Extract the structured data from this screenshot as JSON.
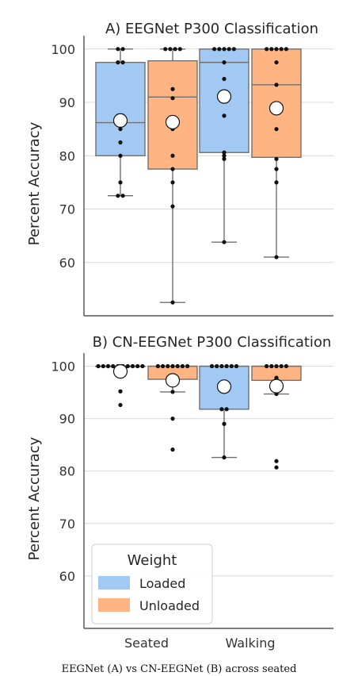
{
  "chart_data": [
    {
      "type": "box",
      "title": "A) EEGNet P300 Classification",
      "ylabel": "Percent Accuracy",
      "ylim": [
        50,
        102.5
      ],
      "yticks": [
        60,
        70,
        80,
        90,
        100
      ],
      "grid": "horizontal",
      "categories": [
        "Seated",
        "Walking"
      ],
      "series": [
        {
          "name": "Loaded",
          "color": "#a1c9f4",
          "boxes": [
            {
              "min": 72.5,
              "q1": 80.0,
              "median": 86.2,
              "q3": 97.5,
              "max": 100.0,
              "mean": 86.6,
              "points": [
                100,
                100,
                97.5,
                97.5,
                87.5,
                87.5,
                86.2,
                85.0,
                82.5,
                80.0,
                75.0,
                72.5,
                72.5
              ]
            },
            {
              "min": 63.8,
              "q1": 80.6,
              "median": 97.5,
              "q3": 100.0,
              "max": 100.0,
              "mean": 91.1,
              "points": [
                100,
                100,
                100,
                100,
                100,
                97.5,
                94.4,
                87.5,
                80.6,
                80.0,
                79.4,
                63.8
              ]
            }
          ]
        },
        {
          "name": "Unloaded",
          "color": "#ffb482",
          "boxes": [
            {
              "min": 52.5,
              "q1": 77.5,
              "median": 91.0,
              "q3": 97.8,
              "max": 100.0,
              "mean": 86.3,
              "points": [
                100,
                100,
                100,
                100,
                92.5,
                90.8,
                85.0,
                80.0,
                77.5,
                75.0,
                70.5,
                52.5
              ]
            },
            {
              "min": 61.0,
              "q1": 79.7,
              "median": 93.3,
              "q3": 100.0,
              "max": 100.0,
              "mean": 88.9,
              "points": [
                100,
                100,
                100,
                100,
                100,
                97.5,
                93.3,
                85.0,
                79.4,
                77.5,
                75.0,
                61.0
              ]
            }
          ]
        }
      ]
    },
    {
      "type": "box",
      "title": "B) CN-EEGNet P300 Classification",
      "ylabel": "Percent Accuracy",
      "ylim": [
        50,
        102.5
      ],
      "yticks": [
        60,
        70,
        80,
        90,
        100
      ],
      "grid": "horizontal",
      "categories": [
        "Seated",
        "Walking"
      ],
      "legend": {
        "title": "Weight",
        "entries": [
          "Loaded",
          "Unloaded"
        ],
        "location": "lower-left"
      },
      "series": [
        {
          "name": "Loaded",
          "color": "#a1c9f4",
          "boxes": [
            {
              "min": 100.0,
              "q1": 100.0,
              "median": 100.0,
              "q3": 100.0,
              "max": 100.0,
              "mean": 99.0,
              "points": [
                100,
                100,
                100,
                100,
                100,
                100,
                100,
                100,
                100,
                100,
                95.2,
                92.6
              ]
            },
            {
              "min": 82.6,
              "q1": 91.8,
              "median": 100.0,
              "q3": 100.0,
              "max": 100.0,
              "mean": 96.1,
              "points": [
                100,
                100,
                100,
                100,
                100,
                100,
                95.7,
                91.8,
                91.8,
                89.0,
                82.6
              ]
            }
          ]
        },
        {
          "name": "Unloaded",
          "color": "#ffb482",
          "boxes": [
            {
              "min": 95.1,
              "q1": 97.5,
              "median": 100.0,
              "q3": 100.0,
              "max": 100.0,
              "mean": 97.3,
              "points": [
                100,
                100,
                100,
                100,
                100,
                100,
                100,
                97.6,
                95.1,
                90.0,
                84.1
              ]
            },
            {
              "min": 94.7,
              "q1": 97.3,
              "median": 100.0,
              "q3": 100.0,
              "max": 100.0,
              "mean": 96.2,
              "points": [
                100,
                100,
                100,
                100,
                100,
                97.8,
                97.6,
                94.7,
                81.9,
                80.7
              ]
            }
          ]
        }
      ]
    }
  ],
  "caption": "EEGNet (A) vs CN-EEGNet (B) across seated"
}
